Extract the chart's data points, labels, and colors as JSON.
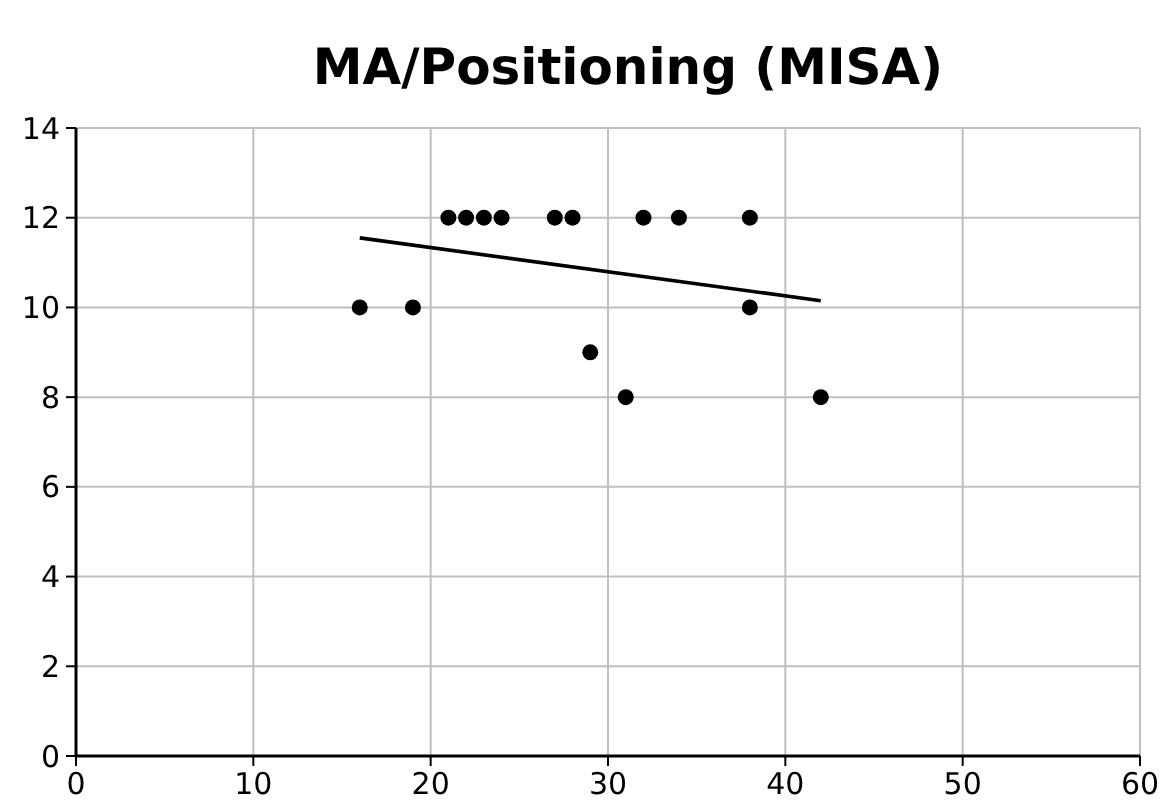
{
  "chart_data": {
    "type": "scatter",
    "title": "MA/Positioning (MISA)",
    "xlim": [
      0,
      60
    ],
    "xticks": [
      0,
      10,
      20,
      30,
      40,
      50,
      60
    ],
    "ylim": [
      0,
      14
    ],
    "yticks": [
      0,
      2,
      4,
      6,
      8,
      10,
      12,
      14
    ],
    "grid": true,
    "series": [
      {
        "color": "#000000",
        "marker": "circle",
        "x": [
          16,
          19,
          21,
          22,
          23,
          24,
          27,
          28,
          29,
          31,
          32,
          34,
          38,
          38,
          42
        ],
        "values": [
          10,
          10,
          12,
          12,
          12,
          12,
          12,
          12,
          9,
          8,
          12,
          12,
          12,
          10,
          8
        ]
      },
      {
        "type": "line",
        "color": "#000000",
        "marker": "none",
        "x": [
          16,
          42
        ],
        "values": [
          11.55,
          10.15
        ]
      }
    ]
  }
}
